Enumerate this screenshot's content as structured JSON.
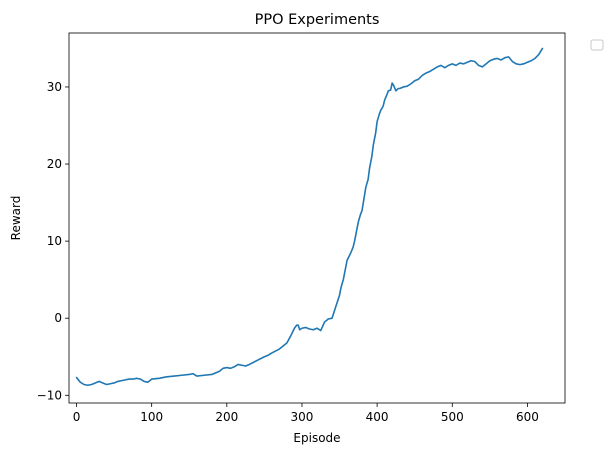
{
  "chart_data": {
    "type": "line",
    "title": "PPO Experiments",
    "xlabel": "Episode",
    "ylabel": "Reward",
    "xlim": [
      -10,
      650
    ],
    "ylim": [
      -11,
      37
    ],
    "xticks": [
      0,
      100,
      200,
      300,
      400,
      500,
      600
    ],
    "yticks": [
      -10,
      0,
      10,
      20,
      30
    ],
    "grid": false,
    "legend": {
      "placement": "outside-top-right",
      "entries": []
    },
    "series": [
      {
        "color": "#1f77b4",
        "x": [
          0,
          5,
          10,
          15,
          20,
          25,
          30,
          35,
          40,
          45,
          50,
          55,
          60,
          65,
          70,
          75,
          80,
          85,
          90,
          95,
          100,
          110,
          120,
          130,
          140,
          150,
          155,
          160,
          170,
          180,
          190,
          195,
          200,
          205,
          210,
          215,
          220,
          225,
          230,
          240,
          250,
          255,
          260,
          270,
          280,
          285,
          290,
          293,
          295,
          297,
          300,
          305,
          310,
          315,
          320,
          325,
          330,
          335,
          340,
          345,
          350,
          352,
          355,
          358,
          360,
          365,
          368,
          370,
          373,
          375,
          378,
          380,
          383,
          385,
          388,
          390,
          393,
          395,
          398,
          400,
          403,
          405,
          408,
          410,
          413,
          415,
          418,
          420,
          422,
          425,
          428,
          430,
          435,
          440,
          445,
          450,
          455,
          460,
          465,
          470,
          475,
          480,
          485,
          490,
          495,
          500,
          505,
          510,
          515,
          520,
          525,
          530,
          535,
          540,
          545,
          550,
          555,
          560,
          565,
          570,
          575,
          580,
          585,
          590,
          595,
          600,
          605,
          610,
          615,
          620
        ],
        "y": [
          -7.7,
          -8.3,
          -8.6,
          -8.7,
          -8.6,
          -8.4,
          -8.2,
          -8.4,
          -8.6,
          -8.5,
          -8.4,
          -8.2,
          -8.1,
          -8.0,
          -7.9,
          -7.9,
          -7.8,
          -7.9,
          -8.2,
          -8.3,
          -7.9,
          -7.8,
          -7.6,
          -7.5,
          -7.4,
          -7.3,
          -7.2,
          -7.5,
          -7.4,
          -7.3,
          -6.9,
          -6.5,
          -6.4,
          -6.5,
          -6.3,
          -6.0,
          -6.1,
          -6.2,
          -6.0,
          -5.5,
          -5.0,
          -4.8,
          -4.5,
          -4.0,
          -3.2,
          -2.3,
          -1.3,
          -0.9,
          -0.9,
          -1.5,
          -1.3,
          -1.2,
          -1.4,
          -1.5,
          -1.3,
          -1.6,
          -0.5,
          -0.1,
          0.0,
          1.5,
          3.0,
          4.0,
          5.0,
          6.5,
          7.5,
          8.5,
          9.2,
          10.0,
          11.5,
          12.5,
          13.5,
          14.0,
          15.8,
          17.0,
          18.0,
          19.5,
          21.0,
          22.5,
          24.0,
          25.5,
          26.5,
          27.0,
          27.5,
          28.3,
          29.0,
          29.5,
          29.6,
          30.5,
          30.2,
          29.5,
          29.8,
          29.8,
          30.0,
          30.1,
          30.4,
          30.8,
          31.0,
          31.5,
          31.8,
          32.0,
          32.3,
          32.6,
          32.8,
          32.5,
          32.8,
          33.0,
          32.8,
          33.1,
          33.0,
          33.2,
          33.4,
          33.3,
          32.8,
          32.6,
          33.0,
          33.4,
          33.6,
          33.7,
          33.5,
          33.8,
          33.9,
          33.3,
          33.0,
          32.9,
          33.0,
          33.2,
          33.4,
          33.7,
          34.2,
          35.0
        ]
      }
    ]
  }
}
